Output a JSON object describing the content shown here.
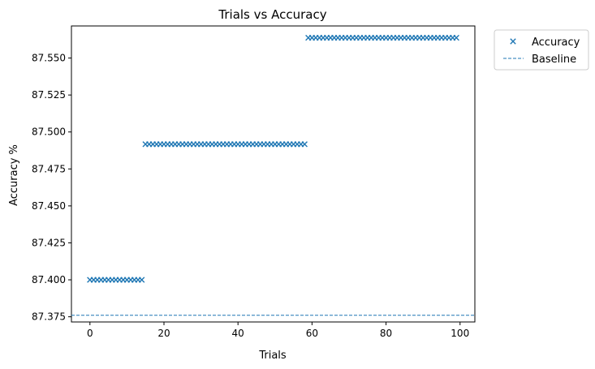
{
  "chart_data": {
    "type": "scatter",
    "title": "Trials vs Accuracy",
    "xlabel": "Trials",
    "ylabel": "Accuracy %",
    "xlim": [
      -5,
      104
    ],
    "ylim": [
      87.3715,
      87.5717
    ],
    "x_ticks": [
      0,
      20,
      40,
      60,
      80,
      100
    ],
    "x_tick_labels": [
      "0",
      "20",
      "40",
      "60",
      "80",
      "100"
    ],
    "y_ticks": [
      87.375,
      87.4,
      87.425,
      87.45,
      87.475,
      87.5,
      87.525,
      87.55
    ],
    "y_tick_labels": [
      "87.375",
      "87.400",
      "87.425",
      "87.450",
      "87.475",
      "87.500",
      "87.525",
      "87.550"
    ],
    "grid": false,
    "legend_position": "outside-top-right",
    "series": [
      {
        "name": "Accuracy",
        "kind": "scatter",
        "marker": "x",
        "color": "#1f77b4",
        "segments": [
          {
            "x_start": 0,
            "x_end": 14,
            "y": 87.4
          },
          {
            "x_start": 15,
            "x_end": 58,
            "y": 87.4917
          },
          {
            "x_start": 59,
            "x_end": 99,
            "y": 87.5637
          }
        ]
      },
      {
        "name": "Baseline",
        "kind": "hline",
        "style": "dashed",
        "color": "#1f77b4",
        "y": 87.376
      }
    ]
  }
}
